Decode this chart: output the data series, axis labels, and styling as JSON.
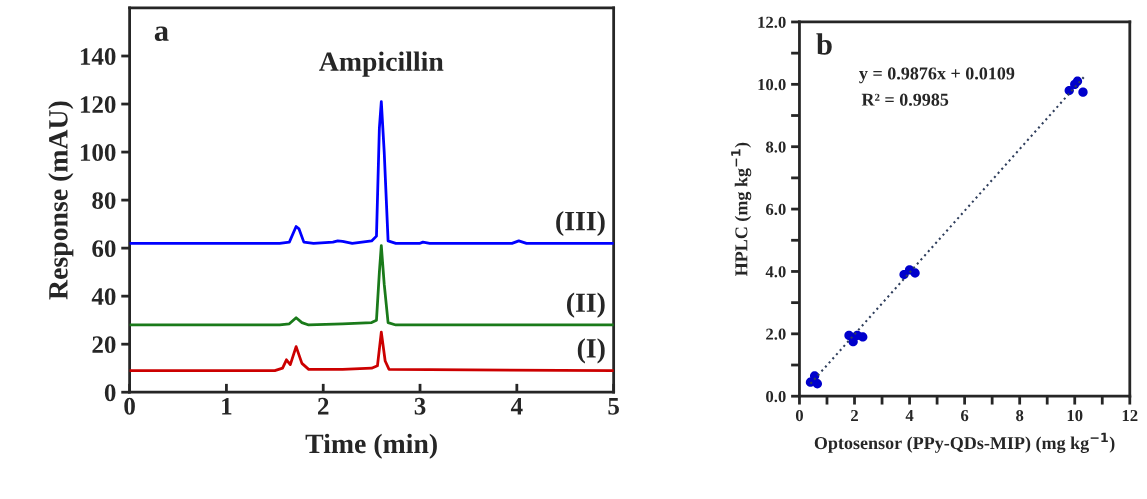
{
  "chart_data": [
    {
      "type": "line",
      "xlabel": "Time (min)",
      "ylabel": "Response (mAU)",
      "annotations": [
        "a",
        {
          "text": "Ampicillin",
          "x": 2.6,
          "y": 121
        }
      ],
      "xlim": [
        0,
        5
      ],
      "ylim": [
        0,
        160
      ],
      "xticks": [
        0,
        1,
        2,
        3,
        4,
        5
      ],
      "yticks": [
        0,
        20,
        40,
        60,
        80,
        100,
        120,
        140
      ],
      "grid": false,
      "legend": false,
      "marker": "none",
      "line_style": "solid",
      "series": [
        {
          "name": "(III)",
          "color": "#0000ff",
          "x": [
            0,
            1.55,
            1.65,
            1.72,
            1.75,
            1.8,
            1.9,
            2.1,
            2.15,
            2.2,
            2.3,
            2.5,
            2.55,
            2.58,
            2.6,
            2.63,
            2.67,
            2.75,
            3.0,
            3.03,
            3.1,
            3.95,
            4.02,
            4.1,
            5
          ],
          "values": [
            62,
            62,
            62.5,
            69,
            68,
            62.5,
            62,
            62.5,
            63,
            62.8,
            62,
            63,
            65,
            110,
            121,
            100,
            63,
            62,
            62,
            62.5,
            62,
            62,
            63,
            62,
            62
          ]
        },
        {
          "name": "(II)",
          "color": "#1a7a1a",
          "x": [
            0,
            1.55,
            1.65,
            1.72,
            1.78,
            1.85,
            2.2,
            2.5,
            2.55,
            2.58,
            2.6,
            2.63,
            2.67,
            2.75,
            5
          ],
          "values": [
            28,
            28,
            28.5,
            31,
            29,
            28,
            28.5,
            29,
            30,
            50,
            61,
            45,
            29,
            28,
            28
          ]
        },
        {
          "name": "(I)",
          "color": "#cc0000",
          "x": [
            0,
            1.5,
            1.58,
            1.62,
            1.66,
            1.72,
            1.78,
            1.85,
            2.2,
            2.5,
            2.56,
            2.6,
            2.64,
            2.68,
            5
          ],
          "values": [
            9,
            9,
            10,
            13.5,
            11.5,
            19,
            12,
            9.5,
            9.5,
            10,
            11,
            25,
            13,
            9.5,
            9
          ]
        }
      ]
    },
    {
      "type": "scatter",
      "xlabel": "Optosensor (PPy-QDs-MIP) (mg kg$^{−1}$)",
      "ylabel": "HPLC (mg kg$^{−1}$)",
      "annotations": [
        "b",
        "y = 0.9876x + 0.0109",
        "R² = 0.9985"
      ],
      "xlim": [
        0,
        12
      ],
      "ylim": [
        0,
        12
      ],
      "xticks": [
        0,
        {
          "value": 1,
          "label": null
        },
        2,
        {
          "value": 3,
          "label": null
        },
        4,
        {
          "value": 5,
          "label": null
        },
        6,
        {
          "value": 7,
          "label": null
        },
        8,
        {
          "value": 9,
          "label": null
        },
        10,
        {
          "value": 11,
          "label": null
        },
        12
      ],
      "yticks": [
        {
          "value": 0,
          "label": "0.0"
        },
        {
          "value": 1,
          "label": null
        },
        {
          "value": 2,
          "label": "2.0"
        },
        {
          "value": 3,
          "label": null
        },
        {
          "value": 4,
          "label": "4.0"
        },
        {
          "value": 5,
          "label": null
        },
        {
          "value": 6,
          "label": "6.0"
        },
        {
          "value": 7,
          "label": null
        },
        {
          "value": 8,
          "label": "8.0"
        },
        {
          "value": 9,
          "label": null
        },
        {
          "value": 10,
          "label": "10.0"
        },
        {
          "value": 11,
          "label": null
        },
        {
          "value": 12,
          "label": "12.0"
        }
      ],
      "grid": false,
      "legend": false,
      "series": [
        {
          "type": "scatter",
          "color": "#0000cc",
          "marker": "circle",
          "x": [
            0.4,
            0.65,
            0.55,
            1.8,
            1.95,
            2.1,
            2.3,
            3.8,
            4.0,
            4.2,
            9.8,
            10.0,
            10.1,
            10.3
          ],
          "values": [
            0.45,
            0.4,
            0.65,
            1.95,
            1.75,
            1.95,
            1.9,
            3.9,
            4.05,
            3.95,
            9.8,
            10.0,
            10.1,
            9.75
          ]
        },
        {
          "type": "line",
          "color": "#2f3e5c",
          "line_style": "dotted",
          "marker": "none",
          "x": [
            0.4,
            10.4
          ],
          "values": [
            0.4,
            10.3
          ]
        }
      ]
    }
  ]
}
